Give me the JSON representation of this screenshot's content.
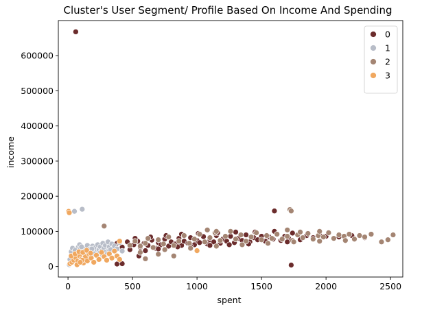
{
  "chart_data": {
    "type": "scatter",
    "title": "Cluster's User Segment/ Profile Based On Income And Spending",
    "xlabel": "spent",
    "ylabel": "income",
    "xlim": [
      -75,
      2595
    ],
    "ylim": [
      -30000,
      700000
    ],
    "xticks": [
      0,
      500,
      1000,
      1500,
      2000,
      2500
    ],
    "yticks": [
      0,
      100000,
      200000,
      300000,
      400000,
      500000,
      600000
    ],
    "legend_position": "top-right",
    "series": [
      {
        "name": "0",
        "color": "#6b2c2c",
        "points": [
          [
            60,
            668000
          ],
          [
            1600,
            158000
          ],
          [
            1730,
            4000
          ],
          [
            380,
            7000
          ],
          [
            420,
            8000
          ],
          [
            550,
            30000
          ],
          [
            300,
            60000
          ],
          [
            340,
            52000
          ],
          [
            380,
            66000
          ],
          [
            420,
            55000
          ],
          [
            460,
            70000
          ],
          [
            480,
            48000
          ],
          [
            510,
            62000
          ],
          [
            540,
            72000
          ],
          [
            560,
            55000
          ],
          [
            590,
            66000
          ],
          [
            620,
            60000
          ],
          [
            650,
            75000
          ],
          [
            680,
            52000
          ],
          [
            700,
            68000
          ],
          [
            720,
            62000
          ],
          [
            750,
            78000
          ],
          [
            780,
            58000
          ],
          [
            800,
            70000
          ],
          [
            830,
            64000
          ],
          [
            860,
            80000
          ],
          [
            880,
            60000
          ],
          [
            900,
            72000
          ],
          [
            930,
            66000
          ],
          [
            950,
            82000
          ],
          [
            980,
            62000
          ],
          [
            1000,
            74000
          ],
          [
            1020,
            68000
          ],
          [
            1050,
            85000
          ],
          [
            1080,
            64000
          ],
          [
            1100,
            76000
          ],
          [
            1130,
            70000
          ],
          [
            1150,
            88000
          ],
          [
            1180,
            66000
          ],
          [
            1200,
            78000
          ],
          [
            1230,
            72000
          ],
          [
            1260,
            86000
          ],
          [
            1290,
            68000
          ],
          [
            1320,
            80000
          ],
          [
            1350,
            74000
          ],
          [
            1380,
            90000
          ],
          [
            1410,
            70000
          ],
          [
            1440,
            82000
          ],
          [
            1470,
            76000
          ],
          [
            1500,
            86000
          ],
          [
            1530,
            72000
          ],
          [
            1560,
            84000
          ],
          [
            1590,
            78000
          ],
          [
            1620,
            92000
          ],
          [
            1650,
            74000
          ],
          [
            1680,
            86000
          ],
          [
            1710,
            80000
          ],
          [
            1740,
            95000
          ],
          [
            1800,
            76000
          ],
          [
            1850,
            88000
          ],
          [
            1900,
            82000
          ],
          [
            1950,
            90000
          ],
          [
            2000,
            86000
          ],
          [
            2100,
            84000
          ],
          [
            2200,
            88000
          ],
          [
            2300,
            82000
          ],
          [
            600,
            45000
          ],
          [
            700,
            50000
          ],
          [
            850,
            56000
          ],
          [
            950,
            58000
          ],
          [
            1100,
            60000
          ],
          [
            1250,
            62000
          ],
          [
            1400,
            64000
          ],
          [
            1550,
            66000
          ],
          [
            1700,
            70000
          ],
          [
            520,
            80000
          ],
          [
            640,
            84000
          ],
          [
            760,
            88000
          ],
          [
            880,
            92000
          ],
          [
            1010,
            94000
          ],
          [
            1160,
            96000
          ],
          [
            1300,
            98000
          ],
          [
            1450,
            98000
          ],
          [
            1600,
            100000
          ]
        ]
      },
      {
        "name": "1",
        "color": "#b8bdc8",
        "points": [
          [
            50,
            157000
          ],
          [
            110,
            163000
          ],
          [
            10,
            5000
          ],
          [
            20,
            10000
          ],
          [
            30,
            18000
          ],
          [
            40,
            25000
          ],
          [
            50,
            32000
          ],
          [
            60,
            40000
          ],
          [
            70,
            48000
          ],
          [
            80,
            55000
          ],
          [
            90,
            62000
          ],
          [
            100,
            35000
          ],
          [
            110,
            28000
          ],
          [
            120,
            45000
          ],
          [
            130,
            52000
          ],
          [
            140,
            38000
          ],
          [
            150,
            60000
          ],
          [
            160,
            42000
          ],
          [
            170,
            50000
          ],
          [
            180,
            34000
          ],
          [
            190,
            58000
          ],
          [
            200,
            46000
          ],
          [
            210,
            54000
          ],
          [
            220,
            40000
          ],
          [
            230,
            62000
          ],
          [
            240,
            48000
          ],
          [
            250,
            56000
          ],
          [
            260,
            44000
          ],
          [
            270,
            66000
          ],
          [
            280,
            52000
          ],
          [
            290,
            60000
          ],
          [
            300,
            42000
          ],
          [
            310,
            70000
          ],
          [
            320,
            56000
          ],
          [
            330,
            48000
          ],
          [
            340,
            64000
          ],
          [
            360,
            58000
          ],
          [
            380,
            50000
          ],
          [
            400,
            68000
          ],
          [
            420,
            44000
          ],
          [
            15,
            20000
          ],
          [
            25,
            42000
          ],
          [
            35,
            52000
          ],
          [
            45,
            14000
          ],
          [
            55,
            46000
          ],
          [
            65,
            22000
          ],
          [
            75,
            36000
          ],
          [
            85,
            30000
          ],
          [
            95,
            50000
          ],
          [
            105,
            56000
          ],
          [
            125,
            24000
          ],
          [
            145,
            32000
          ],
          [
            165,
            28000
          ],
          [
            185,
            50000
          ],
          [
            205,
            36000
          ],
          [
            225,
            30000
          ],
          [
            245,
            38000
          ],
          [
            265,
            34000
          ],
          [
            285,
            40000
          ],
          [
            305,
            36000
          ]
        ]
      },
      {
        "name": "2",
        "color": "#a48573",
        "points": [
          [
            280,
            115000
          ],
          [
            1720,
            162000
          ],
          [
            1730,
            158000
          ],
          [
            2430,
            70000
          ],
          [
            2480,
            76000
          ],
          [
            2520,
            90000
          ],
          [
            480,
            60000
          ],
          [
            520,
            72000
          ],
          [
            560,
            58000
          ],
          [
            600,
            66000
          ],
          [
            620,
            80000
          ],
          [
            660,
            54000
          ],
          [
            700,
            76000
          ],
          [
            740,
            64000
          ],
          [
            780,
            84000
          ],
          [
            820,
            60000
          ],
          [
            860,
            72000
          ],
          [
            900,
            88000
          ],
          [
            940,
            66000
          ],
          [
            980,
            78000
          ],
          [
            1020,
            92000
          ],
          [
            1060,
            70000
          ],
          [
            1100,
            82000
          ],
          [
            1140,
            96000
          ],
          [
            1180,
            74000
          ],
          [
            1220,
            86000
          ],
          [
            1260,
            100000
          ],
          [
            1300,
            78000
          ],
          [
            1340,
            90000
          ],
          [
            1380,
            72000
          ],
          [
            1420,
            84000
          ],
          [
            1460,
            96000
          ],
          [
            1500,
            76000
          ],
          [
            1540,
            88000
          ],
          [
            1580,
            80000
          ],
          [
            1620,
            92000
          ],
          [
            1660,
            78000
          ],
          [
            1700,
            86000
          ],
          [
            1740,
            74000
          ],
          [
            1780,
            90000
          ],
          [
            1820,
            82000
          ],
          [
            1860,
            94000
          ],
          [
            1900,
            78000
          ],
          [
            1940,
            88000
          ],
          [
            1980,
            84000
          ],
          [
            2020,
            96000
          ],
          [
            2060,
            80000
          ],
          [
            2100,
            90000
          ],
          [
            2140,
            86000
          ],
          [
            2180,
            92000
          ],
          [
            2220,
            78000
          ],
          [
            2260,
            88000
          ],
          [
            2300,
            84000
          ],
          [
            2350,
            92000
          ],
          [
            1080,
            104000
          ],
          [
            1150,
            100000
          ],
          [
            1700,
            104000
          ],
          [
            1800,
            98000
          ],
          [
            1950,
            100000
          ],
          [
            560,
            40000
          ],
          [
            750,
            48000
          ],
          [
            950,
            52000
          ],
          [
            1150,
            58000
          ],
          [
            1350,
            62000
          ],
          [
            1550,
            66000
          ],
          [
            1750,
            70000
          ],
          [
            1950,
            72000
          ],
          [
            2150,
            74000
          ],
          [
            600,
            22000
          ],
          [
            700,
            35000
          ],
          [
            820,
            30000
          ],
          [
            1000,
            44000
          ]
        ]
      },
      {
        "name": "3",
        "color": "#f0a860",
        "points": [
          [
            5,
            157000
          ],
          [
            10,
            153000
          ],
          [
            15,
            8000
          ],
          [
            30,
            12000
          ],
          [
            45,
            18000
          ],
          [
            60,
            25000
          ],
          [
            75,
            15000
          ],
          [
            90,
            30000
          ],
          [
            105,
            22000
          ],
          [
            120,
            10000
          ],
          [
            135,
            28000
          ],
          [
            150,
            16000
          ],
          [
            165,
            35000
          ],
          [
            180,
            24000
          ],
          [
            200,
            12000
          ],
          [
            220,
            32000
          ],
          [
            240,
            20000
          ],
          [
            260,
            40000
          ],
          [
            280,
            28000
          ],
          [
            300,
            18000
          ],
          [
            320,
            36000
          ],
          [
            340,
            24000
          ],
          [
            360,
            44000
          ],
          [
            380,
            30000
          ],
          [
            400,
            20000
          ],
          [
            25,
            30000
          ],
          [
            55,
            36000
          ],
          [
            85,
            42000
          ],
          [
            115,
            40000
          ],
          [
            145,
            46000
          ],
          [
            175,
            38000
          ],
          [
            400,
            72000
          ],
          [
            1000,
            45000
          ],
          [
            70,
            5000
          ],
          [
            110,
            18000
          ],
          [
            95,
            12000
          ]
        ]
      }
    ]
  }
}
